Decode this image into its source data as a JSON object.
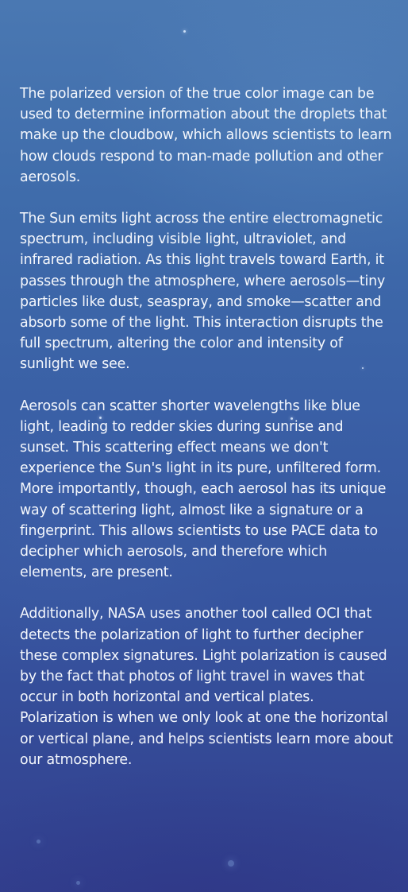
{
  "article": {
    "paragraphs": [
      "The polarized version of the true color image can be used to determine information about the droplets that make up the cloudbow, which allows scientists to learn how clouds respond to man-made pollution and other aerosols.",
      "The Sun emits light across the entire electromagnetic spectrum, including visible light, ultraviolet, and infrared radiation. As this light travels toward Earth, it passes through the atmosphere, where aerosols—tiny particles like dust, seaspray, and smoke—scatter and absorb some of the light. This interaction disrupts the full spectrum, altering the color and intensity of sunlight we see.",
      " Aerosols can scatter shorter wavelengths like blue light, leading to redder skies during sunrise and sunset. This scattering effect means we don't experience the Sun's light in its pure, unfiltered form. More importantly, though, each aerosol has its unique way of scattering light, almost like a signature or a fingerprint. This allows scientists to use PACE data to decipher which aerosols, and therefore which elements, are present.",
      "Additionally, NASA uses another tool called OCI that detects the polarization of light to further decipher these complex signatures. Light polarization is caused by the fact that photos of light travel in waves that occur in both horizontal and vertical plates. Polarization is when we only look at one the horizontal or vertical plane, and helps scientists learn more about our atmosphere."
    ]
  },
  "theme": {
    "text_color": "#f4f7fc",
    "background_top": "#4a78b2",
    "background_bottom": "#323f8e"
  }
}
